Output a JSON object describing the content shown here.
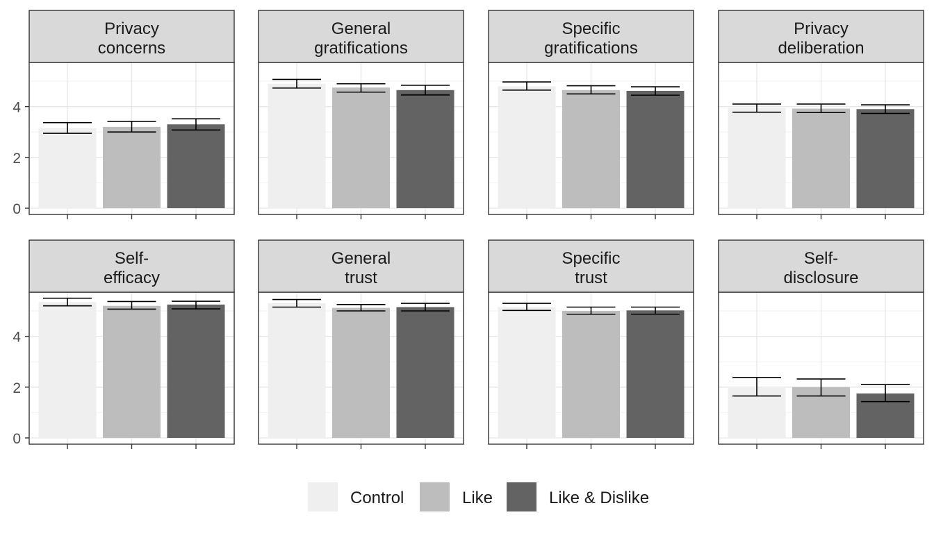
{
  "chart_data": {
    "type": "bar",
    "layout": "facet-grid",
    "ylim": [
      0,
      5.8
    ],
    "yticks": [
      0,
      2,
      4
    ],
    "grid": true,
    "legend_position": "bottom",
    "groups": [
      "Control",
      "Like",
      "Like & Dislike"
    ],
    "colors": [
      "#efefef",
      "#bdbdbd",
      "#636363"
    ],
    "panels": [
      {
        "title": [
          "Privacy",
          "concerns"
        ],
        "values": [
          3.15,
          3.2,
          3.3
        ],
        "error_low": [
          2.95,
          3.0,
          3.08
        ],
        "error_high": [
          3.37,
          3.42,
          3.52
        ]
      },
      {
        "title": [
          "General",
          "gratifications"
        ],
        "values": [
          4.9,
          4.75,
          4.65
        ],
        "error_low": [
          4.73,
          4.57,
          4.46
        ],
        "error_high": [
          5.07,
          4.9,
          4.84
        ]
      },
      {
        "title": [
          "Specific",
          "gratifications"
        ],
        "values": [
          4.8,
          4.65,
          4.62
        ],
        "error_low": [
          4.65,
          4.5,
          4.45
        ],
        "error_high": [
          4.97,
          4.82,
          4.78
        ]
      },
      {
        "title": [
          "Privacy",
          "deliberation"
        ],
        "values": [
          3.95,
          3.92,
          3.9
        ],
        "error_low": [
          3.78,
          3.77,
          3.73
        ],
        "error_high": [
          4.1,
          4.1,
          4.07
        ]
      },
      {
        "title": [
          "Self-",
          "efficacy"
        ],
        "values": [
          5.35,
          5.2,
          5.25
        ],
        "error_low": [
          5.2,
          5.07,
          5.08
        ],
        "error_high": [
          5.5,
          5.37,
          5.38
        ]
      },
      {
        "title": [
          "General",
          "trust"
        ],
        "values": [
          5.3,
          5.12,
          5.15
        ],
        "error_low": [
          5.15,
          5.0,
          5.0
        ],
        "error_high": [
          5.45,
          5.25,
          5.3
        ]
      },
      {
        "title": [
          "Specific",
          "trust"
        ],
        "values": [
          5.15,
          5.0,
          5.02
        ],
        "error_low": [
          5.02,
          4.87,
          4.87
        ],
        "error_high": [
          5.3,
          5.15,
          5.15
        ]
      },
      {
        "title": [
          "Self-",
          "disclosure"
        ],
        "values": [
          2.0,
          2.0,
          1.75
        ],
        "error_low": [
          1.65,
          1.65,
          1.43
        ],
        "error_high": [
          2.38,
          2.32,
          2.1
        ]
      }
    ]
  }
}
